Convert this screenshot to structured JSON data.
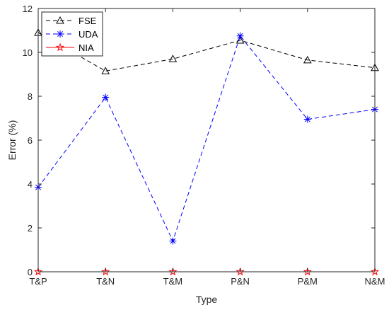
{
  "chart_data": {
    "type": "line",
    "categories": [
      "T&P",
      "T&N",
      "T&M",
      "P&N",
      "P&M",
      "N&M"
    ],
    "xlabel": "Type",
    "ylabel": "Error (%)",
    "ylim": [
      0,
      12
    ],
    "yticks": [
      "0",
      "2",
      "4",
      "6",
      "8",
      "10",
      "12"
    ],
    "grid": false,
    "legend_position": "top-left",
    "series": [
      {
        "name": "FSE",
        "values": [
          10.9,
          9.15,
          9.7,
          10.55,
          9.65,
          9.3
        ],
        "color": "#000000",
        "marker": "triangle",
        "line_style": "dashed"
      },
      {
        "name": "UDA",
        "values": [
          3.85,
          7.95,
          1.4,
          10.75,
          6.95,
          7.4
        ],
        "color": "#0000ff",
        "marker": "asterisk",
        "line_style": "dashed"
      },
      {
        "name": "NIA",
        "values": [
          0,
          0,
          0,
          0,
          0,
          0
        ],
        "color": "#ff0000",
        "marker": "star",
        "line_style": "solid"
      }
    ]
  }
}
